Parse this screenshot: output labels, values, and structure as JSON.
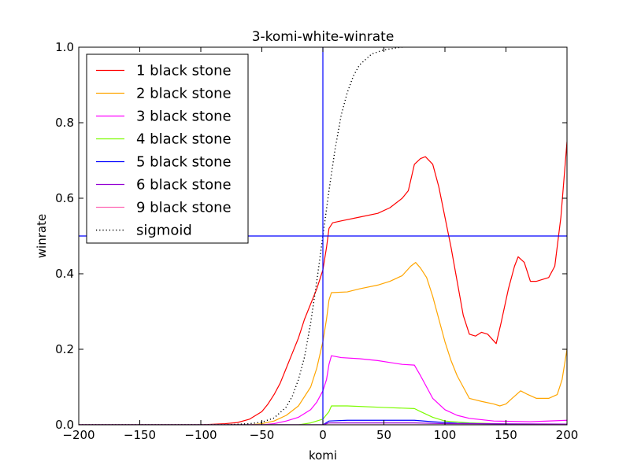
{
  "chart_data": {
    "type": "line",
    "title": "3-komi-white-winrate",
    "xlabel": "komi",
    "ylabel": "winrate",
    "xlim": [
      -200,
      200
    ],
    "ylim": [
      0.0,
      1.0
    ],
    "xticks": [
      -200,
      -150,
      -100,
      -50,
      0,
      50,
      100,
      150,
      200
    ],
    "xtick_labels": [
      "−200",
      "−150",
      "−100",
      "−50",
      "0",
      "50",
      "100",
      "150",
      "200"
    ],
    "yticks": [
      0.0,
      0.2,
      0.4,
      0.6,
      0.8,
      1.0
    ],
    "ytick_labels": [
      "0.0",
      "0.2",
      "0.4",
      "0.6",
      "0.8",
      "1.0"
    ],
    "grid": false,
    "legend_position": "top-left",
    "reference_lines": {
      "vertical_x": 0,
      "horizontal_y": 0.5,
      "color": "#0000ff"
    },
    "series": [
      {
        "name": "1 black stone",
        "color": "#ff0000",
        "style": "solid",
        "points": [
          [
            -200,
            0.0
          ],
          [
            -100,
            0.0
          ],
          [
            -80,
            0.003
          ],
          [
            -70,
            0.006
          ],
          [
            -60,
            0.015
          ],
          [
            -50,
            0.035
          ],
          [
            -45,
            0.055
          ],
          [
            -40,
            0.08
          ],
          [
            -35,
            0.11
          ],
          [
            -30,
            0.15
          ],
          [
            -25,
            0.19
          ],
          [
            -20,
            0.23
          ],
          [
            -15,
            0.28
          ],
          [
            -10,
            0.32
          ],
          [
            -5,
            0.36
          ],
          [
            0,
            0.41
          ],
          [
            3,
            0.47
          ],
          [
            5,
            0.52
          ],
          [
            8,
            0.535
          ],
          [
            15,
            0.54
          ],
          [
            30,
            0.55
          ],
          [
            45,
            0.56
          ],
          [
            55,
            0.575
          ],
          [
            65,
            0.6
          ],
          [
            70,
            0.62
          ],
          [
            75,
            0.69
          ],
          [
            80,
            0.705
          ],
          [
            84,
            0.71
          ],
          [
            90,
            0.69
          ],
          [
            95,
            0.63
          ],
          [
            100,
            0.55
          ],
          [
            105,
            0.47
          ],
          [
            110,
            0.38
          ],
          [
            115,
            0.29
          ],
          [
            120,
            0.24
          ],
          [
            125,
            0.235
          ],
          [
            130,
            0.245
          ],
          [
            135,
            0.24
          ],
          [
            142,
            0.215
          ],
          [
            146,
            0.27
          ],
          [
            152,
            0.36
          ],
          [
            157,
            0.42
          ],
          [
            160,
            0.445
          ],
          [
            165,
            0.43
          ],
          [
            170,
            0.38
          ],
          [
            175,
            0.38
          ],
          [
            185,
            0.39
          ],
          [
            190,
            0.42
          ],
          [
            195,
            0.55
          ],
          [
            200,
            0.75
          ]
        ]
      },
      {
        "name": "2 black stone",
        "color": "#ffa500",
        "style": "solid",
        "points": [
          [
            -200,
            0.0
          ],
          [
            -60,
            0.0
          ],
          [
            -50,
            0.003
          ],
          [
            -40,
            0.01
          ],
          [
            -30,
            0.025
          ],
          [
            -20,
            0.05
          ],
          [
            -10,
            0.1
          ],
          [
            -5,
            0.15
          ],
          [
            0,
            0.22
          ],
          [
            3,
            0.28
          ],
          [
            5,
            0.33
          ],
          [
            7,
            0.35
          ],
          [
            20,
            0.352
          ],
          [
            30,
            0.36
          ],
          [
            45,
            0.37
          ],
          [
            55,
            0.38
          ],
          [
            65,
            0.395
          ],
          [
            72,
            0.42
          ],
          [
            76,
            0.43
          ],
          [
            80,
            0.415
          ],
          [
            85,
            0.39
          ],
          [
            90,
            0.34
          ],
          [
            95,
            0.28
          ],
          [
            100,
            0.22
          ],
          [
            105,
            0.17
          ],
          [
            110,
            0.13
          ],
          [
            115,
            0.1
          ],
          [
            120,
            0.07
          ],
          [
            130,
            0.062
          ],
          [
            140,
            0.055
          ],
          [
            145,
            0.05
          ],
          [
            150,
            0.055
          ],
          [
            155,
            0.07
          ],
          [
            162,
            0.09
          ],
          [
            168,
            0.08
          ],
          [
            175,
            0.07
          ],
          [
            185,
            0.07
          ],
          [
            192,
            0.08
          ],
          [
            196,
            0.12
          ],
          [
            200,
            0.2
          ]
        ]
      },
      {
        "name": "3 black stone",
        "color": "#ff00ff",
        "style": "solid",
        "points": [
          [
            -200,
            0.0
          ],
          [
            -50,
            0.0
          ],
          [
            -40,
            0.003
          ],
          [
            -30,
            0.01
          ],
          [
            -20,
            0.02
          ],
          [
            -10,
            0.04
          ],
          [
            -5,
            0.06
          ],
          [
            0,
            0.09
          ],
          [
            3,
            0.12
          ],
          [
            5,
            0.16
          ],
          [
            7,
            0.183
          ],
          [
            15,
            0.178
          ],
          [
            30,
            0.175
          ],
          [
            45,
            0.17
          ],
          [
            55,
            0.165
          ],
          [
            65,
            0.16
          ],
          [
            75,
            0.158
          ],
          [
            80,
            0.13
          ],
          [
            85,
            0.1
          ],
          [
            90,
            0.07
          ],
          [
            100,
            0.04
          ],
          [
            110,
            0.025
          ],
          [
            120,
            0.017
          ],
          [
            140,
            0.01
          ],
          [
            170,
            0.008
          ],
          [
            200,
            0.012
          ]
        ]
      },
      {
        "name": "4 black stone",
        "color": "#7cfc00",
        "style": "solid",
        "points": [
          [
            -200,
            0.0
          ],
          [
            -20,
            0.0
          ],
          [
            -10,
            0.005
          ],
          [
            0,
            0.015
          ],
          [
            5,
            0.035
          ],
          [
            7,
            0.05
          ],
          [
            20,
            0.05
          ],
          [
            50,
            0.046
          ],
          [
            75,
            0.043
          ],
          [
            80,
            0.035
          ],
          [
            90,
            0.02
          ],
          [
            100,
            0.01
          ],
          [
            120,
            0.005
          ],
          [
            150,
            0.002
          ],
          [
            200,
            0.002
          ]
        ]
      },
      {
        "name": "5 black stone",
        "color": "#0000ff",
        "style": "solid",
        "points": [
          [
            -200,
            0.0
          ],
          [
            0,
            0.0
          ],
          [
            5,
            0.01
          ],
          [
            20,
            0.012
          ],
          [
            75,
            0.012
          ],
          [
            90,
            0.008
          ],
          [
            110,
            0.004
          ],
          [
            150,
            0.002
          ],
          [
            200,
            0.002
          ]
        ]
      },
      {
        "name": "6 black stone",
        "color": "#9400d3",
        "style": "solid",
        "points": [
          [
            -200,
            0.0
          ],
          [
            0,
            0.0
          ],
          [
            5,
            0.005
          ],
          [
            75,
            0.005
          ],
          [
            100,
            0.003
          ],
          [
            200,
            0.002
          ]
        ]
      },
      {
        "name": "9 black stone",
        "color": "#ff69b4",
        "style": "solid",
        "points": [
          [
            -200,
            0.0
          ],
          [
            200,
            0.0
          ]
        ]
      },
      {
        "name": "sigmoid",
        "color": "#000000",
        "style": "dotted",
        "points": [
          [
            -200,
            0.0
          ],
          [
            -80,
            0.0
          ],
          [
            -60,
            0.003
          ],
          [
            -50,
            0.007
          ],
          [
            -40,
            0.018
          ],
          [
            -30,
            0.047
          ],
          [
            -25,
            0.076
          ],
          [
            -20,
            0.12
          ],
          [
            -15,
            0.18
          ],
          [
            -10,
            0.27
          ],
          [
            -5,
            0.38
          ],
          [
            0,
            0.5
          ],
          [
            5,
            0.62
          ],
          [
            10,
            0.73
          ],
          [
            15,
            0.82
          ],
          [
            20,
            0.88
          ],
          [
            25,
            0.924
          ],
          [
            30,
            0.953
          ],
          [
            40,
            0.982
          ],
          [
            50,
            0.993
          ],
          [
            60,
            0.998
          ],
          [
            65,
            1.0
          ]
        ]
      }
    ]
  }
}
